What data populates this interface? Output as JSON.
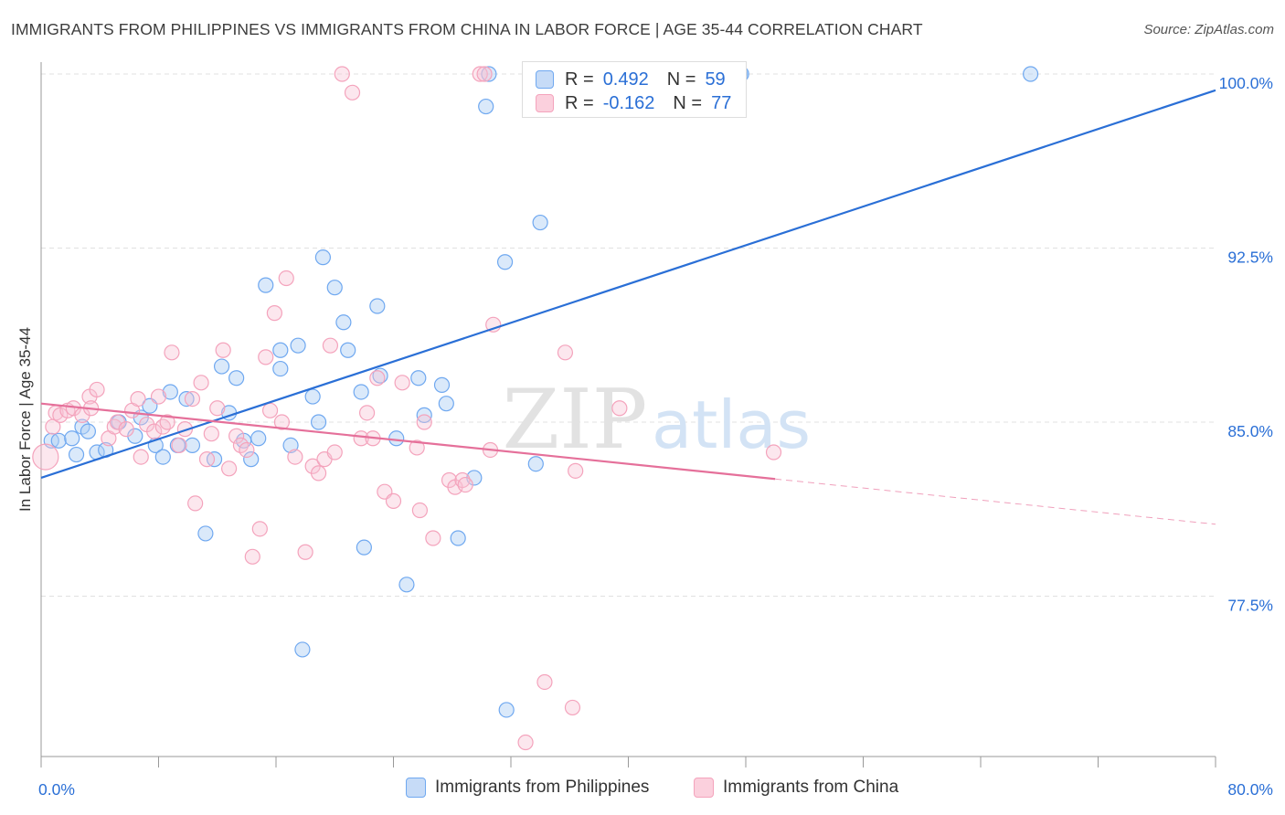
{
  "header": {
    "title": "IMMIGRANTS FROM PHILIPPINES VS IMMIGRANTS FROM CHINA IN LABOR FORCE | AGE 35-44 CORRELATION CHART",
    "source": "Source: ZipAtlas.com"
  },
  "watermark": {
    "zip": "ZIP",
    "atlas": "atlas"
  },
  "stats_legend": {
    "rows": [
      {
        "r_label": "R =",
        "r_value": "0.492",
        "n_label": "N =",
        "n_value": "59",
        "color": "#6fa8f0"
      },
      {
        "r_label": "R =",
        "r_value": "-0.162",
        "n_label": "N =",
        "n_value": "77",
        "color": "#f4a3bc"
      }
    ]
  },
  "bottom_legend": {
    "items": [
      {
        "label": "Immigrants from Philippines",
        "color": "#6fa8f0"
      },
      {
        "label": "Immigrants from China",
        "color": "#f4a3bc"
      }
    ]
  },
  "chart_data": {
    "type": "scatter",
    "title": "IMMIGRANTS FROM PHILIPPINES VS IMMIGRANTS FROM CHINA IN LABOR FORCE | AGE 35-44 CORRELATION CHART",
    "xlabel": "",
    "ylabel": "In Labor Force | Age 35-44",
    "xlim": [
      0,
      80
    ],
    "ylim": [
      71,
      101.5
    ],
    "x_tick_labels": [
      "0.0%",
      "80.0%"
    ],
    "y_ticks": [
      77.5,
      85.0,
      92.5,
      100.0
    ],
    "y_tick_labels": [
      "77.5%",
      "85.0%",
      "92.5%",
      "100.0%"
    ],
    "grid": true,
    "legend_position": "bottom",
    "series": [
      {
        "name": "Immigrants from Philippines",
        "color": "#6fa8f0",
        "trend": {
          "x": [
            0,
            80
          ],
          "y": [
            82.6,
            99.3
          ],
          "dashed_from": null
        },
        "points": [
          [
            0.7,
            84.2
          ],
          [
            1.2,
            84.2
          ],
          [
            2.1,
            84.3
          ],
          [
            2.8,
            84.8
          ],
          [
            3.2,
            84.6
          ],
          [
            2.4,
            83.6
          ],
          [
            3.8,
            83.7
          ],
          [
            4.4,
            83.8
          ],
          [
            5.3,
            85.0
          ],
          [
            6.4,
            84.4
          ],
          [
            6.8,
            85.2
          ],
          [
            7.4,
            85.7
          ],
          [
            7.8,
            84.0
          ],
          [
            8.3,
            83.5
          ],
          [
            8.8,
            86.3
          ],
          [
            9.3,
            84.0
          ],
          [
            9.9,
            86.0
          ],
          [
            10.3,
            84.0
          ],
          [
            11.2,
            80.2
          ],
          [
            11.8,
            83.4
          ],
          [
            12.3,
            87.4
          ],
          [
            12.8,
            85.4
          ],
          [
            13.3,
            86.9
          ],
          [
            13.8,
            84.2
          ],
          [
            14.3,
            83.4
          ],
          [
            14.8,
            84.3
          ],
          [
            15.3,
            90.9
          ],
          [
            16.3,
            87.3
          ],
          [
            16.3,
            88.1
          ],
          [
            17.5,
            88.3
          ],
          [
            17.8,
            75.2
          ],
          [
            18.5,
            86.1
          ],
          [
            18.9,
            85.0
          ],
          [
            19.2,
            92.1
          ],
          [
            20.0,
            90.8
          ],
          [
            20.6,
            89.3
          ],
          [
            20.9,
            88.1
          ],
          [
            21.8,
            86.3
          ],
          [
            22.0,
            79.6
          ],
          [
            22.9,
            90.0
          ],
          [
            23.1,
            87.0
          ],
          [
            24.2,
            84.3
          ],
          [
            24.9,
            78.0
          ],
          [
            25.7,
            86.9
          ],
          [
            26.1,
            85.3
          ],
          [
            27.3,
            86.6
          ],
          [
            27.6,
            85.8
          ],
          [
            28.4,
            80.0
          ],
          [
            30.3,
            98.6
          ],
          [
            30.5,
            100.0
          ],
          [
            31.6,
            91.9
          ],
          [
            31.7,
            72.6
          ],
          [
            33.7,
            83.2
          ],
          [
            34.0,
            93.6
          ],
          [
            47.6,
            100.0
          ],
          [
            47.7,
            100.0
          ],
          [
            67.4,
            100.0
          ],
          [
            17.0,
            84.0
          ],
          [
            29.5,
            82.6
          ]
        ]
      },
      {
        "name": "Immigrants from China",
        "color": "#f4a3bc",
        "trend": {
          "x": [
            0,
            80
          ],
          "y": [
            85.8,
            80.6
          ],
          "dashed_from": 50
        },
        "points": [
          [
            0.3,
            83.5
          ],
          [
            0.8,
            84.8
          ],
          [
            1.0,
            85.4
          ],
          [
            1.3,
            85.3
          ],
          [
            1.8,
            85.5
          ],
          [
            2.2,
            85.6
          ],
          [
            2.8,
            85.3
          ],
          [
            3.3,
            86.1
          ],
          [
            3.4,
            85.6
          ],
          [
            3.8,
            86.4
          ],
          [
            4.6,
            84.3
          ],
          [
            5.0,
            84.8
          ],
          [
            5.2,
            85.0
          ],
          [
            5.8,
            84.7
          ],
          [
            6.2,
            85.5
          ],
          [
            6.6,
            86.0
          ],
          [
            6.8,
            83.5
          ],
          [
            7.2,
            84.9
          ],
          [
            7.7,
            84.6
          ],
          [
            8.0,
            86.1
          ],
          [
            8.3,
            84.8
          ],
          [
            8.6,
            85.0
          ],
          [
            8.9,
            88.0
          ],
          [
            9.4,
            84.0
          ],
          [
            9.8,
            84.7
          ],
          [
            10.3,
            86.0
          ],
          [
            10.5,
            81.5
          ],
          [
            10.9,
            86.7
          ],
          [
            11.3,
            83.4
          ],
          [
            11.6,
            84.5
          ],
          [
            12.0,
            85.6
          ],
          [
            12.4,
            88.1
          ],
          [
            12.8,
            83.0
          ],
          [
            13.3,
            84.4
          ],
          [
            13.6,
            84.0
          ],
          [
            14.0,
            83.8
          ],
          [
            14.4,
            79.2
          ],
          [
            14.9,
            80.4
          ],
          [
            15.3,
            87.8
          ],
          [
            15.6,
            85.5
          ],
          [
            15.9,
            89.7
          ],
          [
            16.4,
            85.0
          ],
          [
            16.7,
            91.2
          ],
          [
            17.3,
            83.5
          ],
          [
            18.0,
            79.4
          ],
          [
            18.5,
            83.1
          ],
          [
            18.9,
            82.8
          ],
          [
            19.3,
            83.4
          ],
          [
            19.7,
            88.3
          ],
          [
            20.0,
            83.7
          ],
          [
            20.5,
            100.0
          ],
          [
            21.2,
            99.2
          ],
          [
            21.8,
            84.3
          ],
          [
            22.2,
            85.4
          ],
          [
            22.6,
            84.3
          ],
          [
            22.9,
            86.9
          ],
          [
            23.4,
            82.0
          ],
          [
            24.0,
            81.6
          ],
          [
            24.6,
            86.7
          ],
          [
            25.6,
            83.9
          ],
          [
            25.8,
            81.2
          ],
          [
            26.1,
            85.0
          ],
          [
            26.7,
            80.0
          ],
          [
            27.8,
            82.5
          ],
          [
            28.2,
            82.2
          ],
          [
            28.7,
            82.5
          ],
          [
            28.9,
            82.3
          ],
          [
            29.9,
            100.0
          ],
          [
            30.2,
            100.0
          ],
          [
            30.6,
            83.8
          ],
          [
            30.8,
            89.2
          ],
          [
            33.0,
            71.2
          ],
          [
            34.3,
            73.8
          ],
          [
            35.7,
            88.0
          ],
          [
            36.2,
            72.7
          ],
          [
            36.4,
            82.9
          ],
          [
            39.4,
            85.6
          ]
        ]
      },
      {
        "name": "",
        "color": "#f4a3bc",
        "points": [
          [
            49.9,
            83.7
          ]
        ]
      }
    ]
  }
}
